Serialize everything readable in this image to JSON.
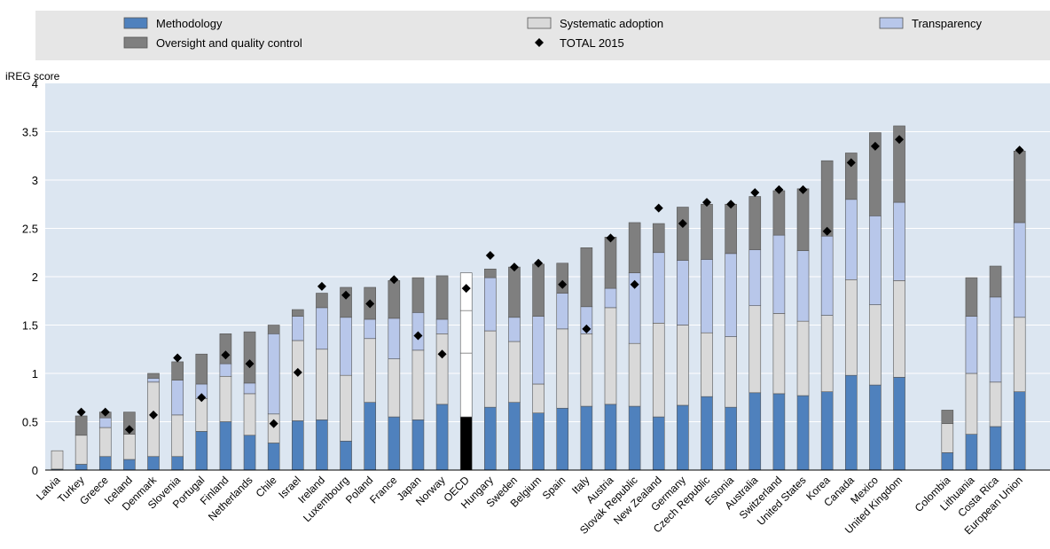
{
  "chart_data": {
    "type": "bar",
    "stacked": true,
    "title": "",
    "xlabel": "",
    "ylabel": "iREG score",
    "ylim": [
      0,
      4
    ],
    "yticks": [
      0,
      0.5,
      1,
      1.5,
      2,
      2.5,
      3,
      3.5,
      4
    ],
    "ytick_labels": [
      "0",
      "0.5",
      "1",
      "1.5",
      "2",
      "2.5",
      "3",
      "3.5",
      "4"
    ],
    "grid": true,
    "legend_position": "top",
    "plot_background": "#dce6f1",
    "categories": [
      "Latvia",
      "Turkey",
      "Greece",
      "Iceland",
      "Denmark",
      "Slovenia",
      "Portugal",
      "Finland",
      "Netherlands",
      "Chile",
      "Israel",
      "Ireland",
      "Luxembourg",
      "Poland",
      "France",
      "Japan",
      "Norway",
      "OECD",
      "Hungary",
      "Sweden",
      "Belgium",
      "Spain",
      "Italy",
      "Austria",
      "Slovak Republic",
      "New Zealand",
      "Germany",
      "Czech Republic",
      "Estonia",
      "Australia",
      "Switzerland",
      "United States",
      "Korea",
      "Canada",
      "Mexico",
      "United Kingdom",
      "",
      "Colombia",
      "Lithuania",
      "Costa Rica",
      "European Union"
    ],
    "highlight": {
      "category": "OECD",
      "colors": [
        "#000000",
        "#ffffff",
        "#ffffff",
        "#ffffff"
      ]
    },
    "series": [
      {
        "name": "Methodology",
        "color": "#4f81bd",
        "values": [
          0.01,
          0.06,
          0.14,
          0.11,
          0.14,
          0.14,
          0.4,
          0.5,
          0.36,
          0.28,
          0.51,
          0.52,
          0.3,
          0.7,
          0.55,
          0.52,
          0.68,
          0.55,
          0.65,
          0.7,
          0.59,
          0.64,
          0.66,
          0.68,
          0.66,
          0.55,
          0.67,
          0.76,
          0.65,
          0.8,
          0.79,
          0.77,
          0.81,
          0.98,
          0.88,
          0.96,
          null,
          0.18,
          0.37,
          0.45,
          0.81
        ]
      },
      {
        "name": "Systematic adoption",
        "color": "#d9d9d9",
        "values": [
          0.19,
          0.3,
          0.3,
          0.26,
          0.77,
          0.43,
          0.34,
          0.47,
          0.43,
          0.3,
          0.83,
          0.73,
          0.68,
          0.66,
          0.6,
          0.72,
          0.73,
          0.66,
          0.79,
          0.63,
          0.3,
          0.82,
          0.75,
          1.0,
          0.65,
          0.97,
          0.83,
          0.66,
          0.73,
          0.9,
          0.83,
          0.77,
          0.79,
          0.99,
          0.83,
          1.0,
          null,
          0.3,
          0.63,
          0.46,
          0.77
        ]
      },
      {
        "name": "Transparency",
        "color": "#b8c7ea",
        "values": [
          0.0,
          0.0,
          0.1,
          0.0,
          0.04,
          0.36,
          0.15,
          0.13,
          0.11,
          0.83,
          0.25,
          0.43,
          0.6,
          0.2,
          0.42,
          0.39,
          0.15,
          0.44,
          0.55,
          0.25,
          0.7,
          0.37,
          0.28,
          0.2,
          0.73,
          0.73,
          0.67,
          0.76,
          0.86,
          0.58,
          0.81,
          0.73,
          0.82,
          0.83,
          0.92,
          0.81,
          null,
          0.0,
          0.59,
          0.88,
          0.98
        ]
      },
      {
        "name": "Oversight and quality control",
        "color": "#7f7f7f",
        "values": [
          0.0,
          0.2,
          0.06,
          0.23,
          0.05,
          0.19,
          0.31,
          0.31,
          0.53,
          0.09,
          0.07,
          0.15,
          0.31,
          0.33,
          0.39,
          0.36,
          0.45,
          0.39,
          0.09,
          0.52,
          0.54,
          0.31,
          0.61,
          0.53,
          0.52,
          0.3,
          0.55,
          0.57,
          0.51,
          0.55,
          0.46,
          0.64,
          0.78,
          0.48,
          0.86,
          0.79,
          null,
          0.14,
          0.4,
          0.32,
          0.74
        ]
      }
    ],
    "markers": {
      "name": "TOTAL 2015",
      "color": "#000000",
      "values": [
        null,
        0.6,
        0.6,
        0.42,
        0.57,
        1.16,
        0.75,
        1.19,
        1.1,
        0.48,
        1.01,
        1.9,
        1.81,
        1.72,
        1.97,
        1.39,
        1.2,
        1.88,
        2.22,
        2.1,
        2.14,
        1.92,
        1.46,
        2.4,
        1.92,
        2.71,
        2.55,
        2.77,
        2.75,
        2.87,
        2.9,
        2.9,
        2.47,
        3.18,
        3.35,
        3.42,
        null,
        null,
        null,
        null,
        3.31
      ]
    }
  }
}
